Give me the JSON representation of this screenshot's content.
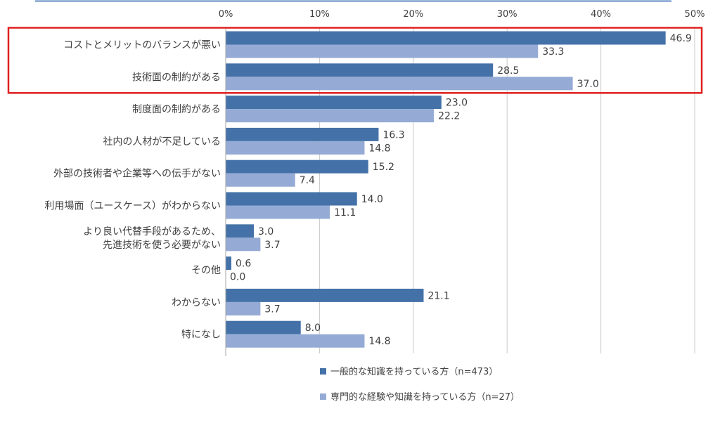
{
  "chart_data": {
    "type": "bar",
    "orientation": "horizontal",
    "categories": [
      "コストとメリットのバランスが悪い",
      "技術面の制約がある",
      "制度面の制約がある",
      "社内の人材が不足している",
      "外部の技術者や企業等への伝手がない",
      "利用場面（ユースケース）がわからない",
      "より良い代替手段があるため、\n先進技術を使う必要がない",
      "その他",
      "わからない",
      "特になし"
    ],
    "series": [
      {
        "name": "一般的な知識を持っている方（n=473）",
        "values": [
          46.9,
          28.5,
          23.0,
          16.3,
          15.2,
          14.0,
          3.0,
          0.6,
          21.1,
          8.0
        ],
        "labels": [
          "46.9",
          "28.5",
          "23.0",
          "16.3",
          "15.2",
          "14.0",
          "3.0",
          "0.6",
          "21.1",
          "8.0"
        ],
        "color": "#4472a8"
      },
      {
        "name": "専門的な経験や知識を持っている方（n=27）",
        "values": [
          33.3,
          37.0,
          22.2,
          14.8,
          7.4,
          11.1,
          3.7,
          0.0,
          3.7,
          14.8
        ],
        "labels": [
          "33.3",
          "37.0",
          "22.2",
          "14.8",
          "7.4",
          "11.1",
          "3.7",
          "0.0",
          "3.7",
          "14.8"
        ],
        "color": "#95abd5"
      }
    ],
    "xlim": [
      0,
      50
    ],
    "xticks": [
      0,
      10,
      20,
      30,
      40,
      50
    ],
    "xtick_labels": [
      "0%",
      "10%",
      "20%",
      "30%",
      "40%",
      "50%"
    ],
    "grid": true,
    "legend_position": "bottom",
    "highlight": {
      "categories": [
        0,
        1
      ],
      "color": "#e02020"
    },
    "title": "",
    "xlabel": "",
    "ylabel": ""
  }
}
